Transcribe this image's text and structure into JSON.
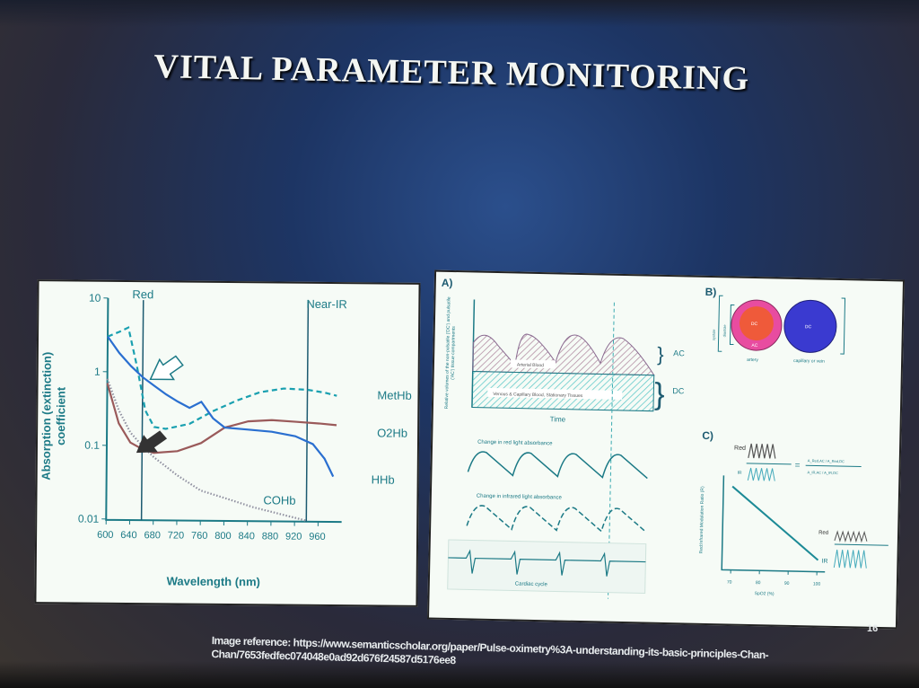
{
  "slide": {
    "title": "VITAL PARAMETER MONITORING",
    "page_number": "16",
    "reference_line1": "Image reference: https://www.semanticscholar.org/paper/Pulse-oximetry%3A-understanding-its-basic-principles-Chan-",
    "reference_line2": "Chan/7653fedfec074048e0ad92d676f24587d5176ee8"
  },
  "chart_data": [
    {
      "type": "line",
      "xlabel": "Wavelength (nm)",
      "ylabel": "Absorption (extinction) coefficient",
      "x_ticks": [
        "600",
        "640",
        "680",
        "720",
        "760",
        "800",
        "840",
        "880",
        "920",
        "960"
      ],
      "y_ticks": [
        "10",
        "1",
        "0.1",
        "0.01"
      ],
      "y_scale": "log",
      "xlim": [
        600,
        1000
      ],
      "ylim": [
        0.01,
        10
      ],
      "annotations": {
        "red": "Red",
        "near_ir": "Near-IR",
        "red_nm": 660,
        "near_ir_nm": 940
      },
      "series": [
        {
          "name": "MetHb",
          "color": "#1aa0b0",
          "style": "dashed",
          "x": [
            600,
            620,
            635,
            650,
            665,
            680,
            700,
            740,
            780,
            820,
            860,
            900,
            940,
            970,
            990
          ],
          "y": [
            3,
            3.5,
            4,
            1.2,
            0.3,
            0.18,
            0.17,
            0.2,
            0.3,
            0.42,
            0.55,
            0.62,
            0.6,
            0.55,
            0.5
          ]
        },
        {
          "name": "O2Hb",
          "color": "#9a5a5a",
          "style": "solid",
          "x": [
            600,
            620,
            640,
            660,
            680,
            720,
            760,
            800,
            840,
            880,
            920,
            960,
            990
          ],
          "y": [
            0.7,
            0.2,
            0.11,
            0.09,
            0.08,
            0.085,
            0.11,
            0.18,
            0.22,
            0.23,
            0.22,
            0.21,
            0.2
          ]
        },
        {
          "name": "HHb",
          "color": "#2a6fd0",
          "style": "solid",
          "x": [
            600,
            620,
            640,
            660,
            680,
            700,
            720,
            740,
            760,
            780,
            800,
            840,
            880,
            920,
            950,
            970,
            985
          ],
          "y": [
            3,
            1.8,
            1.2,
            0.85,
            0.65,
            0.5,
            0.4,
            0.33,
            0.4,
            0.24,
            0.18,
            0.17,
            0.16,
            0.14,
            0.11,
            0.07,
            0.04
          ]
        },
        {
          "name": "COHb",
          "color": "#9090a0",
          "style": "dotted",
          "x": [
            600,
            620,
            640,
            660,
            680,
            720,
            760,
            800,
            850,
            900,
            940
          ],
          "y": [
            0.8,
            0.3,
            0.15,
            0.1,
            0.07,
            0.04,
            0.025,
            0.02,
            0.015,
            0.012,
            0.01
          ]
        }
      ]
    },
    {
      "type": "line",
      "panel_label": "C)",
      "xlabel": "SpO2 (%)",
      "ylabel": "Red:Infrared Modulation Ratio (R)",
      "x_ticks": [
        "70",
        "80",
        "90",
        "100"
      ],
      "series": [
        {
          "x": [
            70,
            100
          ],
          "y": [
            1,
            0
          ]
        }
      ]
    }
  ],
  "diagram": {
    "panel_a": {
      "label": "A)",
      "y_label": "Relative volumes of the non-pulsatile ('DC') and pulsatile ('AC') tissue compartments",
      "arterial": "Arterial Blood",
      "venous": "Venous & Capillary Blood, Stationary Tissues",
      "ac": "AC",
      "dc": "DC",
      "time": "Time",
      "red_change": "Change in red light absorbance",
      "ir_change": "Change in infrared light absorbance",
      "cardiac": "Cardiac cycle"
    },
    "panel_b": {
      "label": "B)",
      "dc": "DC",
      "ac": "AC",
      "artery": "artery",
      "vein": "capillary or vein",
      "systole": "systole",
      "diastole": "diastole"
    },
    "panel_c": {
      "red": "Red",
      "ir": "IR",
      "eq": "=",
      "num": "A_Red,AC / A_Red,DC",
      "den": "A_IR,AC / A_IR,DC"
    }
  }
}
